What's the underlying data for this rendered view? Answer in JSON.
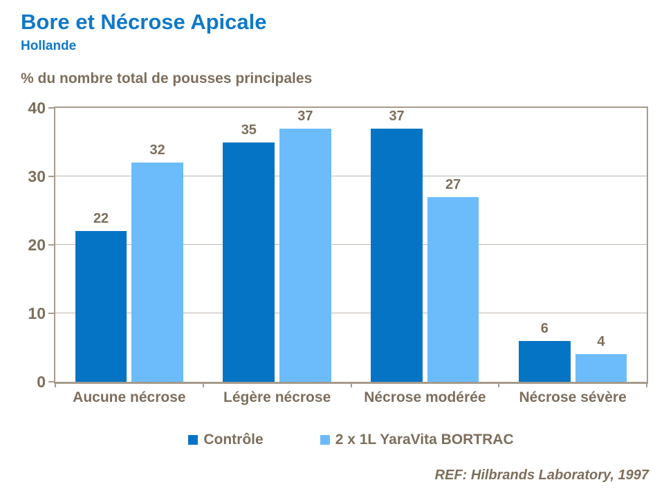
{
  "header": {
    "title": "Bore et Nécrose Apicale",
    "subtitle": "Hollande"
  },
  "footer": {
    "ref": "REF: Hilbrands Laboratory, 1997"
  },
  "colors": {
    "title_blue": "#0F78C8",
    "text_brown": "#7D6E5C",
    "axis_taupe": "#A69B8C",
    "gridline": "#BDB7AD",
    "series_dark_blue": "#0674C4",
    "series_light_blue": "#6CBCFB"
  },
  "chart_data": {
    "type": "bar",
    "title": "Bore et Nécrose Apicale",
    "subtitle": "Hollande",
    "ylabel": "% du nombre total de pousses principales",
    "xlabel": "",
    "categories": [
      "Aucune nécrose",
      "Légère nécrose",
      "Nécrose modérée",
      "Nécrose sévère"
    ],
    "series": [
      {
        "name": "Contrôle",
        "color": "#0674C4",
        "values": [
          22,
          35,
          37,
          6
        ]
      },
      {
        "name": "2 x 1L YaraVita BORTRAC",
        "color": "#6CBCFB",
        "values": [
          32,
          37,
          27,
          4
        ]
      }
    ],
    "ylim": [
      0,
      40
    ],
    "yticks": [
      0,
      10,
      20,
      30,
      40
    ],
    "grid": true,
    "data_labels": true,
    "legend_position": "bottom"
  }
}
